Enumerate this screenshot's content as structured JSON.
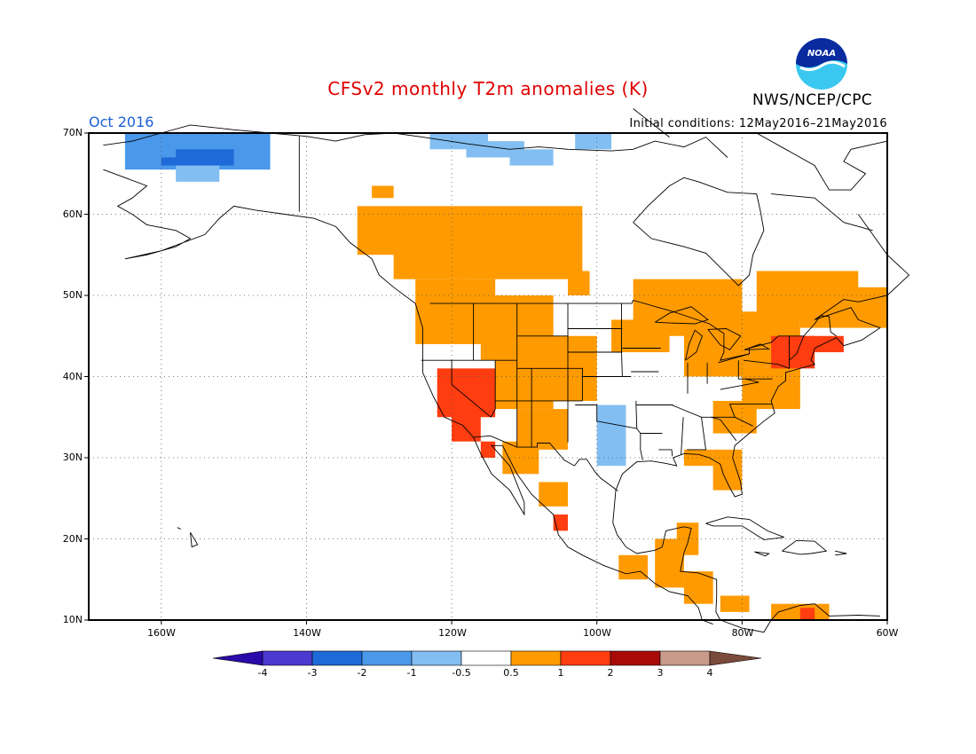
{
  "header": {
    "title": "CFSv2 monthly T2m anomalies (K)",
    "organization": "NWS/NCEP/CPC",
    "logo_text": "NOAA",
    "period": "Oct 2016",
    "initial_conditions": "Initial conditions: 12May2016–21May2016"
  },
  "map": {
    "lat_labels": [
      "70N",
      "60N",
      "50N",
      "40N",
      "30N",
      "20N",
      "10N"
    ],
    "lon_labels": [
      "160W",
      "140W",
      "120W",
      "100W",
      "80W",
      "60W"
    ],
    "lat_range": [
      10,
      70
    ],
    "lon_range": [
      -170,
      -60
    ]
  },
  "colorbar": {
    "labels": [
      "-4",
      "-3",
      "-2",
      "-1",
      "-0.5",
      "0.5",
      "1",
      "2",
      "3",
      "4"
    ],
    "colors": [
      "#2a0aa8",
      "#4a3ad0",
      "#1e6ad8",
      "#4a98ea",
      "#82bef2",
      "#ffffff",
      "#ff9a00",
      "#ff3d10",
      "#a80a0a",
      "#c79a8a",
      "#7a4a3a"
    ]
  }
}
